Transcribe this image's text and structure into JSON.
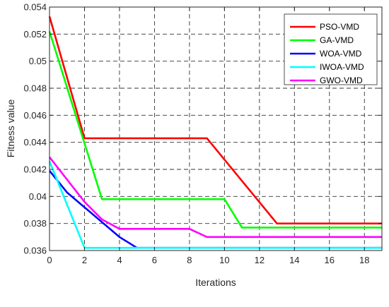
{
  "chart_data": {
    "type": "line",
    "title": "",
    "xlabel": "Iterations",
    "ylabel": "Fitness value",
    "xlim": [
      0,
      19
    ],
    "ylim": [
      0.036,
      0.054
    ],
    "x_ticks": [
      0,
      2,
      4,
      6,
      8,
      10,
      12,
      14,
      16,
      18
    ],
    "y_ticks": [
      0.036,
      0.038,
      0.04,
      0.042,
      0.044,
      0.046,
      0.048,
      0.05,
      0.052,
      0.054
    ],
    "x_tick_labels": [
      "0",
      "2",
      "4",
      "6",
      "8",
      "10",
      "12",
      "14",
      "16",
      "18"
    ],
    "y_tick_labels": [
      "0.036",
      "0.038",
      "0.04",
      "0.042",
      "0.044",
      "0.046",
      "0.048",
      "0.05",
      "0.052",
      "0.054"
    ],
    "grid": true,
    "grid_style": "dashed",
    "legend_position": "top-right",
    "series": [
      {
        "name": "PSO-VMD",
        "color": "#ff0000",
        "points": [
          [
            0,
            0.0533
          ],
          [
            2,
            0.0443
          ],
          [
            9,
            0.0443
          ],
          [
            13,
            0.038
          ],
          [
            19,
            0.038
          ]
        ]
      },
      {
        "name": "GA-VMD",
        "color": "#00ff00",
        "points": [
          [
            0,
            0.0522
          ],
          [
            3,
            0.0398
          ],
          [
            10,
            0.0398
          ],
          [
            11,
            0.0377
          ],
          [
            19,
            0.0377
          ]
        ]
      },
      {
        "name": "WOA-VMD",
        "color": "#0000ff",
        "points": [
          [
            0,
            0.0419
          ],
          [
            1,
            0.0403
          ],
          [
            2,
            0.0392
          ],
          [
            3,
            0.0381
          ],
          [
            4,
            0.037
          ],
          [
            5,
            0.0362
          ],
          [
            19,
            0.0362
          ]
        ]
      },
      {
        "name": "IWOA-VMD",
        "color": "#00ffff",
        "points": [
          [
            0,
            0.0426
          ],
          [
            2,
            0.0362
          ],
          [
            19,
            0.0362
          ]
        ]
      },
      {
        "name": "GWO-VMD",
        "color": "#ff00ff",
        "points": [
          [
            0,
            0.0429
          ],
          [
            2,
            0.0396
          ],
          [
            3,
            0.0383
          ],
          [
            4,
            0.0376
          ],
          [
            8,
            0.0376
          ],
          [
            9,
            0.037
          ],
          [
            19,
            0.037
          ]
        ]
      }
    ]
  }
}
